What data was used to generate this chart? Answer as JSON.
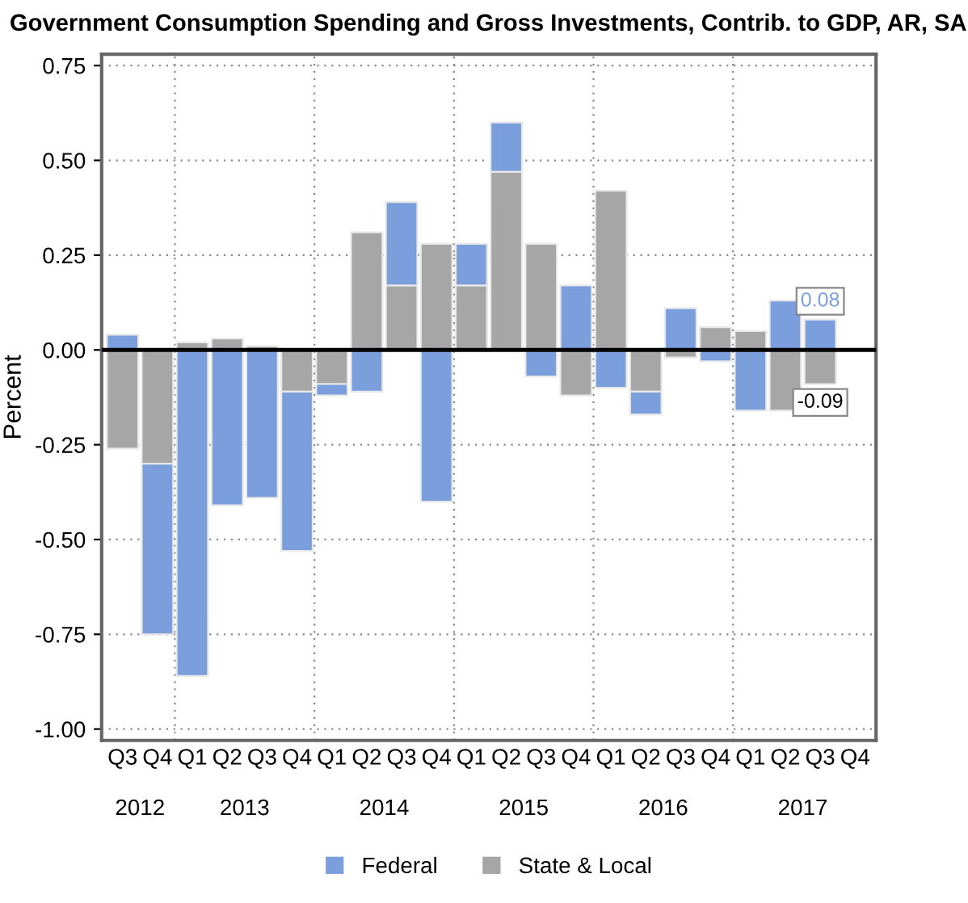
{
  "chart_data": {
    "type": "bar",
    "stacked": true,
    "title": "Government Consumption Spending and Gross Investments, Contrib. to GDP, AR, SA",
    "ylabel": "Percent",
    "categories": [
      "Q3",
      "Q4",
      "Q1",
      "Q2",
      "Q3",
      "Q4",
      "Q1",
      "Q2",
      "Q3",
      "Q4",
      "Q1",
      "Q2",
      "Q3",
      "Q4",
      "Q1",
      "Q2",
      "Q3",
      "Q4",
      "Q1",
      "Q2",
      "Q3",
      "Q4"
    ],
    "annotations": [
      "2012",
      "2013",
      "2014",
      "2015",
      "2016",
      "2017"
    ],
    "series": [
      {
        "name": "State & Local",
        "color": "#a6a6a6",
        "values": [
          -0.26,
          -0.3,
          0.02,
          0.03,
          0.01,
          -0.11,
          -0.09,
          0.31,
          0.17,
          0.28,
          0.17,
          0.47,
          0.28,
          -0.12,
          0.42,
          -0.11,
          -0.02,
          0.06,
          0.05,
          -0.16,
          -0.09,
          null
        ],
        "value_labels": [
          null,
          null,
          null,
          null,
          null,
          null,
          null,
          null,
          null,
          null,
          null,
          null,
          null,
          null,
          null,
          null,
          null,
          null,
          null,
          null,
          "-0.09",
          null
        ]
      },
      {
        "name": "Federal",
        "color": "#7a9fdc",
        "values": [
          0.04,
          -0.45,
          -0.86,
          -0.41,
          -0.39,
          -0.42,
          -0.03,
          -0.11,
          0.22,
          -0.4,
          0.11,
          0.13,
          -0.07,
          0.17,
          -0.1,
          -0.06,
          0.11,
          -0.03,
          -0.16,
          0.13,
          0.08,
          null
        ],
        "value_labels": [
          null,
          null,
          null,
          null,
          null,
          null,
          null,
          null,
          null,
          null,
          null,
          null,
          null,
          null,
          null,
          null,
          null,
          null,
          null,
          null,
          "0.08",
          null
        ]
      }
    ],
    "ylim": [
      -1.03,
      0.78
    ],
    "yticks": [
      {
        "value": -1,
        "label": "-1.00"
      },
      {
        "value": -0.75,
        "label": "-0.75"
      },
      {
        "value": -0.5,
        "label": "-0.50"
      },
      {
        "value": -0.25,
        "label": "-0.25"
      },
      {
        "value": 0,
        "label": "0.00"
      },
      {
        "value": 0.25,
        "label": "0.25"
      },
      {
        "value": 0.5,
        "label": "0.50"
      },
      {
        "value": 0.75,
        "label": "0.75"
      }
    ],
    "ref_lines": [
      {
        "axis": "y",
        "value": 0,
        "color": "#000000"
      }
    ],
    "grid": true,
    "legend": "bottom"
  }
}
